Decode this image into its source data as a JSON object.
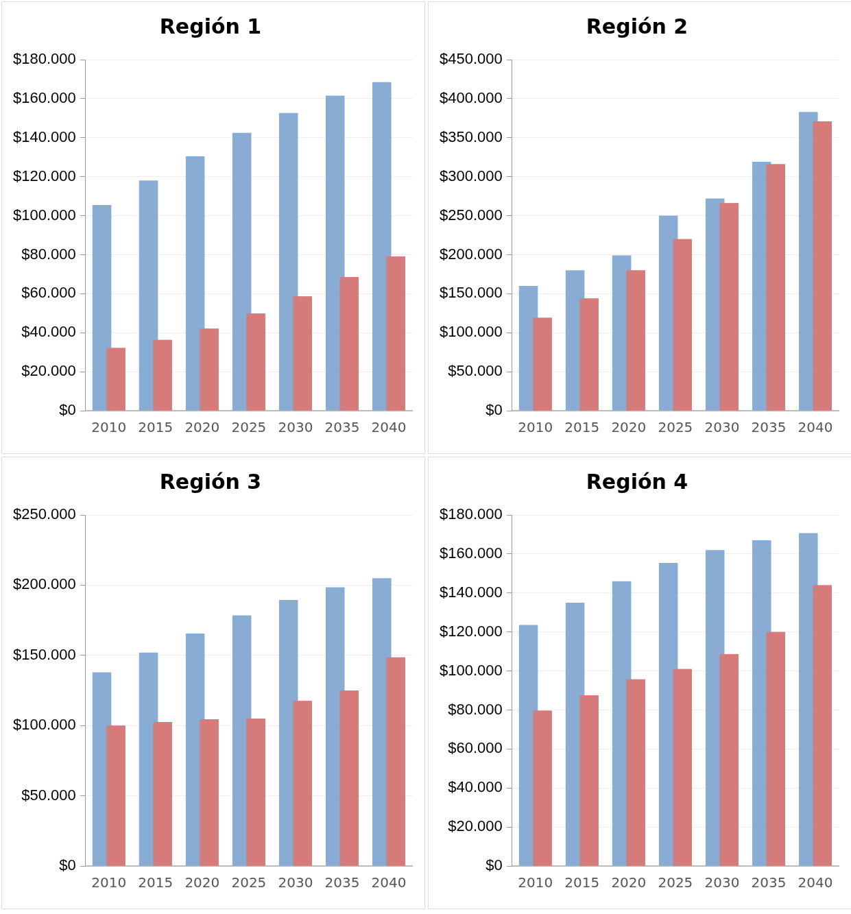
{
  "chart_data": [
    {
      "type": "bar",
      "title": "Región 1",
      "categories": [
        "2010",
        "2015",
        "2020",
        "2025",
        "2030",
        "2035",
        "2040"
      ],
      "series": [
        {
          "color": "#7fa5d0",
          "values": [
            105500,
            118000,
            130400,
            142500,
            152700,
            161500,
            168500
          ]
        },
        {
          "color": "#d67b7a",
          "values": [
            32200,
            36300,
            42100,
            49800,
            58600,
            68500,
            79100
          ]
        }
      ],
      "ylim": [
        0,
        180000
      ],
      "yticks": [
        {
          "value": 0,
          "label": "$0"
        },
        {
          "value": 20000,
          "label": "$20.000"
        },
        {
          "value": 40000,
          "label": "$40.000"
        },
        {
          "value": 60000,
          "label": "$60.000"
        },
        {
          "value": 80000,
          "label": "$80.000"
        },
        {
          "value": 100000,
          "label": "$100.000"
        },
        {
          "value": 120000,
          "label": "$120.000"
        },
        {
          "value": 140000,
          "label": "$140.000"
        },
        {
          "value": 160000,
          "label": "$160.000"
        },
        {
          "value": 180000,
          "label": "$180.000"
        }
      ],
      "grid": "y",
      "legend": false
    },
    {
      "type": "bar",
      "title": "Región 2",
      "categories": [
        "2010",
        "2015",
        "2020",
        "2025",
        "2030",
        "2035",
        "2040"
      ],
      "series": [
        {
          "color": "#7fa5d0",
          "values": [
            160000,
            180000,
            199000,
            250000,
            272000,
            319000,
            383000
          ]
        },
        {
          "color": "#d67b7a",
          "values": [
            119000,
            144000,
            180000,
            220000,
            266000,
            316000,
            371000
          ]
        }
      ],
      "ylim": [
        0,
        450000
      ],
      "yticks": [
        {
          "value": 0,
          "label": "$0"
        },
        {
          "value": 50000,
          "label": "$50.000"
        },
        {
          "value": 100000,
          "label": "$100.000"
        },
        {
          "value": 150000,
          "label": "$150.000"
        },
        {
          "value": 200000,
          "label": "$200.000"
        },
        {
          "value": 250000,
          "label": "$250.000"
        },
        {
          "value": 300000,
          "label": "$300.000"
        },
        {
          "value": 350000,
          "label": "$350.000"
        },
        {
          "value": 400000,
          "label": "$400.000"
        },
        {
          "value": 450000,
          "label": "$450.000"
        }
      ],
      "grid": "y",
      "legend": false
    },
    {
      "type": "bar",
      "title": "Región 3",
      "categories": [
        "2010",
        "2015",
        "2020",
        "2025",
        "2030",
        "2035",
        "2040"
      ],
      "series": [
        {
          "color": "#7fa5d0",
          "values": [
            138000,
            152000,
            165500,
            178500,
            189500,
            198500,
            205000
          ]
        },
        {
          "color": "#d67b7a",
          "values": [
            100000,
            102500,
            104500,
            105000,
            117500,
            125000,
            148500
          ]
        }
      ],
      "ylim": [
        0,
        250000
      ],
      "yticks": [
        {
          "value": 0,
          "label": "$0"
        },
        {
          "value": 50000,
          "label": "$50.000"
        },
        {
          "value": 100000,
          "label": "$100.000"
        },
        {
          "value": 150000,
          "label": "$150.000"
        },
        {
          "value": 200000,
          "label": "$200.000"
        },
        {
          "value": 250000,
          "label": "$250.000"
        }
      ],
      "grid": "y",
      "legend": false
    },
    {
      "type": "bar",
      "title": "Región 4",
      "categories": [
        "2010",
        "2015",
        "2020",
        "2025",
        "2030",
        "2035",
        "2040"
      ],
      "series": [
        {
          "color": "#7fa5d0",
          "values": [
            123600,
            135000,
            146000,
            155400,
            162000,
            167000,
            170700
          ]
        },
        {
          "color": "#d67b7a",
          "values": [
            79600,
            87500,
            95700,
            101000,
            108600,
            120000,
            144000
          ]
        }
      ],
      "ylim": [
        0,
        180000
      ],
      "yticks": [
        {
          "value": 0,
          "label": "$0"
        },
        {
          "value": 20000,
          "label": "$20.000"
        },
        {
          "value": 40000,
          "label": "$40.000"
        },
        {
          "value": 60000,
          "label": "$60.000"
        },
        {
          "value": 80000,
          "label": "$80.000"
        },
        {
          "value": 100000,
          "label": "$100.000"
        },
        {
          "value": 120000,
          "label": "$120.000"
        },
        {
          "value": 140000,
          "label": "$140.000"
        },
        {
          "value": 160000,
          "label": "$160.000"
        },
        {
          "value": 180000,
          "label": "$180.000"
        }
      ],
      "grid": "y",
      "legend": false
    }
  ]
}
